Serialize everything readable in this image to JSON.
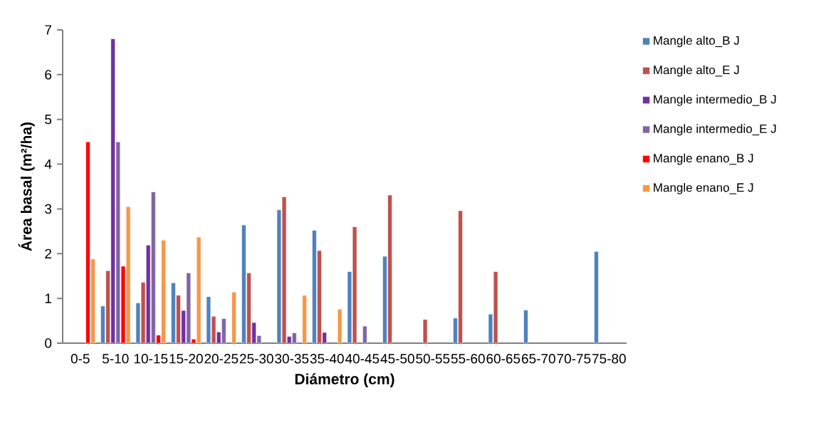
{
  "chart_data": {
    "type": "bar",
    "xlabel": "Diámetro (cm)",
    "ylabel": "Área basal (m²/ha)",
    "categories": [
      "0-5",
      "5-10",
      "10-15",
      "15-20",
      "20-25",
      "25-30",
      "30-35",
      "35-40",
      "40-45",
      "45-50",
      "50-55",
      "55-60",
      "60-65",
      "65-70",
      "70-75",
      "75-80"
    ],
    "series": [
      {
        "name": "Mangle alto_B J",
        "color": "#4f81bd",
        "values": [
          null,
          0.83,
          0.9,
          1.35,
          1.04,
          2.64,
          2.98,
          2.52,
          1.6,
          1.94,
          null,
          0.56,
          0.65,
          0.74,
          null,
          2.05
        ]
      },
      {
        "name": "Mangle alto_E J",
        "color": "#c0504d",
        "values": [
          null,
          1.62,
          1.36,
          1.07,
          0.6,
          1.57,
          3.27,
          2.07,
          2.6,
          3.31,
          0.53,
          2.96,
          1.6,
          null,
          null,
          null
        ]
      },
      {
        "name": "Mangle intermedio_B J",
        "color": "#7030a0",
        "values": [
          null,
          6.8,
          2.19,
          0.73,
          0.25,
          0.46,
          0.15,
          0.24,
          null,
          null,
          null,
          null,
          null,
          null,
          null,
          null
        ]
      },
      {
        "name": "Mangle intermedio_E J",
        "color": "#8064a2",
        "values": [
          null,
          4.5,
          3.38,
          1.57,
          0.55,
          0.17,
          0.23,
          null,
          0.38,
          null,
          null,
          null,
          null,
          null,
          null,
          null
        ]
      },
      {
        "name": "Mangle enano_B J",
        "color": "#ff0000",
        "values": [
          4.5,
          1.72,
          0.18,
          0.09,
          null,
          null,
          null,
          null,
          null,
          null,
          null,
          null,
          null,
          null,
          null,
          null
        ]
      },
      {
        "name": "Mangle enano_E J",
        "color": "#f79646",
        "values": [
          1.88,
          3.05,
          2.3,
          2.37,
          1.14,
          null,
          1.07,
          0.76,
          null,
          null,
          null,
          null,
          null,
          null,
          null,
          null
        ]
      }
    ],
    "ylim": [
      0,
      7
    ],
    "yticks": [
      0,
      1,
      2,
      3,
      4,
      5,
      6,
      7
    ],
    "legend": "right"
  }
}
